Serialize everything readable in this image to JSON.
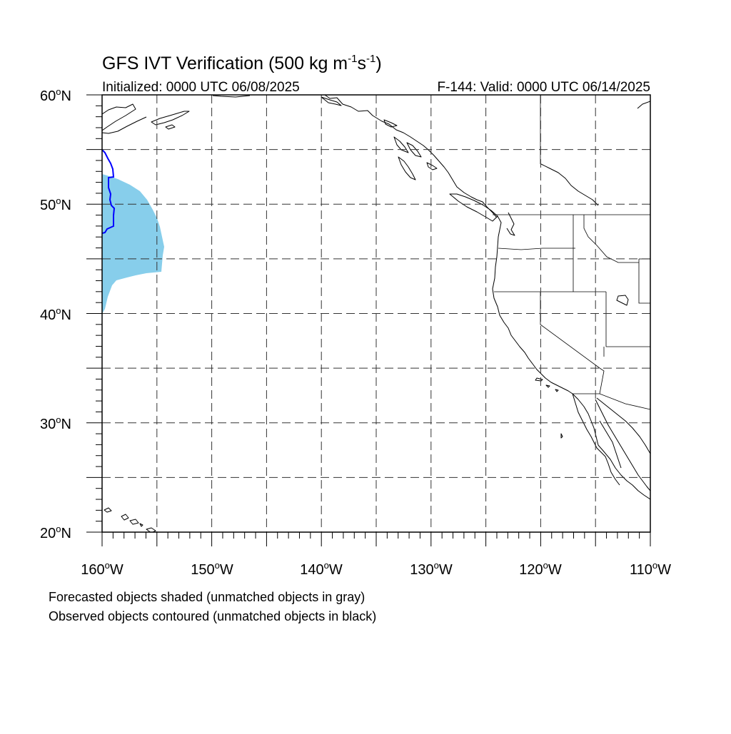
{
  "title": {
    "main": "GFS IVT Verification (500 kg m",
    "sup1": "-1",
    "mid": "s",
    "sup2": "-1",
    "end": ")"
  },
  "initialized": "Initialized: 0000 UTC 06/08/2025",
  "valid": "F-144: Valid: 0000 UTC 06/14/2025",
  "lat_labels": [
    "60",
    "50",
    "40",
    "30",
    "20"
  ],
  "lon_labels": [
    "160",
    "150",
    "140",
    "130",
    "120",
    "110"
  ],
  "lat_suffix": "N",
  "lon_suffix": "W",
  "degree_symbol": "o",
  "map_extent": {
    "lon_min": -160,
    "lon_max": -110,
    "lat_min": 20,
    "lat_max": 60
  },
  "gridlines": {
    "lon_step": 5,
    "lat_step": 5,
    "style": "dashed"
  },
  "forecast_object": {
    "fill_color": "#87CEEB",
    "matched": true
  },
  "observed_object": {
    "stroke_color": "#0000FF",
    "matched": true
  },
  "captions": [
    "Forecasted objects shaded (unmatched objects in gray)",
    "Observed objects contoured (unmatched objects in black)"
  ]
}
